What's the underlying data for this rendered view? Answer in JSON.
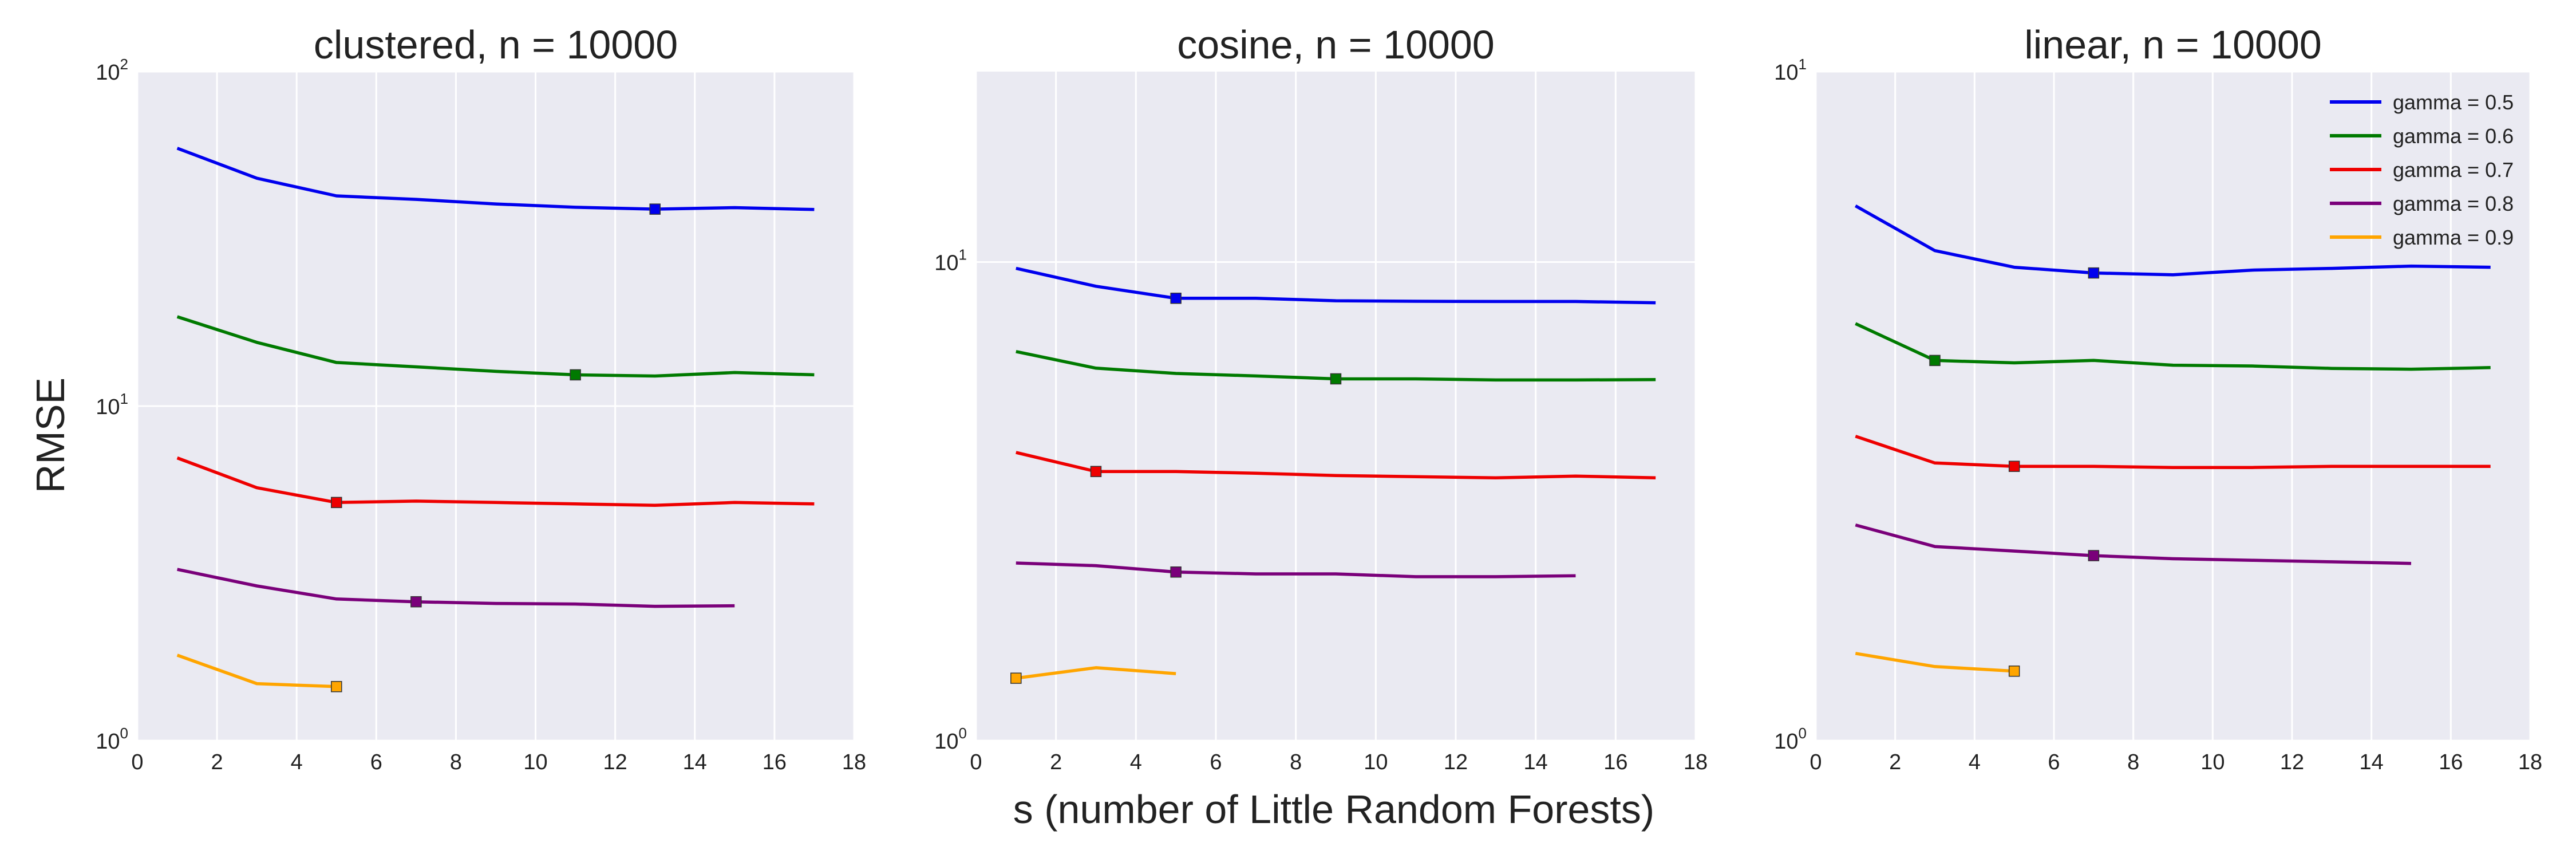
{
  "chart_data": [
    {
      "type": "line",
      "title": "clustered, n = 10000",
      "yscale": "log",
      "ylim": [
        1,
        100
      ],
      "xlim": [
        0,
        18
      ],
      "xticks": [
        0,
        2,
        4,
        6,
        8,
        10,
        12,
        14,
        16,
        18
      ],
      "yticks": [
        {
          "value": 1,
          "base": "10",
          "exp": "0"
        },
        {
          "value": 10,
          "base": "10",
          "exp": "1"
        },
        {
          "value": 100,
          "base": "10",
          "exp": "2"
        }
      ],
      "series": [
        {
          "name": "gamma = 0.5",
          "x": [
            1,
            3,
            5,
            7,
            9,
            11,
            13,
            15,
            17
          ],
          "values": [
            59,
            48,
            42.5,
            41.5,
            40.2,
            39.3,
            38.8,
            39.2,
            38.7
          ],
          "marker_x": 13,
          "marker_y": 38.8
        },
        {
          "name": "gamma = 0.6",
          "x": [
            1,
            3,
            5,
            7,
            9,
            11,
            13,
            15,
            17
          ],
          "values": [
            18.5,
            15.5,
            13.5,
            13.1,
            12.7,
            12.4,
            12.3,
            12.6,
            12.4
          ],
          "marker_x": 11,
          "marker_y": 12.4
        },
        {
          "name": "gamma = 0.7",
          "x": [
            1,
            3,
            5,
            7,
            9,
            11,
            13,
            15,
            17
          ],
          "values": [
            7.0,
            5.7,
            5.15,
            5.2,
            5.15,
            5.1,
            5.05,
            5.15,
            5.1
          ],
          "marker_x": 5,
          "marker_y": 5.15
        },
        {
          "name": "gamma = 0.8",
          "x": [
            1,
            3,
            5,
            7,
            9,
            11,
            13,
            15
          ],
          "values": [
            3.25,
            2.9,
            2.65,
            2.6,
            2.57,
            2.56,
            2.52,
            2.53
          ],
          "marker_x": 7,
          "marker_y": 2.6
        },
        {
          "name": "gamma = 0.9",
          "x": [
            1,
            3,
            5
          ],
          "values": [
            1.8,
            1.48,
            1.45
          ],
          "marker_x": 5,
          "marker_y": 1.45
        }
      ]
    },
    {
      "type": "line",
      "title": "cosine, n = 10000",
      "yscale": "log",
      "ylim": [
        1,
        25
      ],
      "xlim": [
        0,
        18
      ],
      "xticks": [
        0,
        2,
        4,
        6,
        8,
        10,
        12,
        14,
        16,
        18
      ],
      "yticks": [
        {
          "value": 1,
          "base": "10",
          "exp": "0"
        },
        {
          "value": 10,
          "base": "10",
          "exp": "1"
        }
      ],
      "series": [
        {
          "name": "gamma = 0.5",
          "x": [
            1,
            3,
            5,
            7,
            9,
            11,
            13,
            15,
            17
          ],
          "values": [
            9.7,
            8.9,
            8.4,
            8.4,
            8.3,
            8.28,
            8.27,
            8.27,
            8.22
          ],
          "marker_x": 5,
          "marker_y": 8.4
        },
        {
          "name": "gamma = 0.6",
          "x": [
            1,
            3,
            5,
            7,
            9,
            11,
            13,
            15,
            17
          ],
          "values": [
            6.5,
            6.0,
            5.85,
            5.78,
            5.7,
            5.7,
            5.67,
            5.67,
            5.68
          ],
          "marker_x": 9,
          "marker_y": 5.7
        },
        {
          "name": "gamma = 0.7",
          "x": [
            1,
            3,
            5,
            7,
            9,
            11,
            13,
            15,
            17
          ],
          "values": [
            4.0,
            3.65,
            3.65,
            3.62,
            3.58,
            3.56,
            3.54,
            3.57,
            3.54
          ],
          "marker_x": 3,
          "marker_y": 3.65
        },
        {
          "name": "gamma = 0.8",
          "x": [
            1,
            3,
            5,
            7,
            9,
            11,
            13,
            15
          ],
          "values": [
            2.35,
            2.32,
            2.25,
            2.23,
            2.23,
            2.2,
            2.2,
            2.21
          ],
          "marker_x": 5,
          "marker_y": 2.25
        },
        {
          "name": "gamma = 0.9",
          "x": [
            1,
            3,
            5
          ],
          "values": [
            1.35,
            1.42,
            1.38
          ],
          "marker_x": 1,
          "marker_y": 1.35
        }
      ]
    },
    {
      "type": "line",
      "title": "linear, n = 10000",
      "yscale": "log",
      "ylim": [
        1,
        10
      ],
      "xlim": [
        0,
        18
      ],
      "xticks": [
        0,
        2,
        4,
        6,
        8,
        10,
        12,
        14,
        16,
        18
      ],
      "yticks": [
        {
          "value": 1,
          "base": "10",
          "exp": "0"
        },
        {
          "value": 10,
          "base": "10",
          "exp": "1"
        }
      ],
      "legend": {
        "position": "top-right",
        "entries": [
          "gamma = 0.5",
          "gamma = 0.6",
          "gamma = 0.7",
          "gamma = 0.8",
          "gamma = 0.9"
        ]
      },
      "series": [
        {
          "name": "gamma = 0.5",
          "x": [
            1,
            3,
            5,
            7,
            9,
            11,
            13,
            15,
            17
          ],
          "values": [
            6.3,
            5.4,
            5.1,
            5.0,
            4.97,
            5.05,
            5.08,
            5.12,
            5.1
          ],
          "marker_x": 7,
          "marker_y": 5.0
        },
        {
          "name": "gamma = 0.6",
          "x": [
            1,
            3,
            5,
            7,
            9,
            11,
            13,
            15,
            17
          ],
          "values": [
            4.2,
            3.7,
            3.67,
            3.7,
            3.64,
            3.63,
            3.6,
            3.59,
            3.61
          ],
          "marker_x": 3,
          "marker_y": 3.7
        },
        {
          "name": "gamma = 0.7",
          "x": [
            1,
            3,
            5,
            7,
            9,
            11,
            13,
            15,
            17
          ],
          "values": [
            2.85,
            2.6,
            2.57,
            2.57,
            2.56,
            2.56,
            2.57,
            2.57,
            2.57
          ],
          "marker_x": 5,
          "marker_y": 2.57
        },
        {
          "name": "gamma = 0.8",
          "x": [
            1,
            3,
            5,
            7,
            9,
            11,
            13,
            15
          ],
          "values": [
            2.1,
            1.95,
            1.92,
            1.89,
            1.87,
            1.86,
            1.85,
            1.84
          ],
          "marker_x": 7,
          "marker_y": 1.89
        },
        {
          "name": "gamma = 0.9",
          "x": [
            1,
            3,
            5
          ],
          "values": [
            1.35,
            1.29,
            1.27
          ],
          "marker_x": 5,
          "marker_y": 1.27
        }
      ]
    }
  ],
  "figure": {
    "ylabel": "RMSE",
    "xlabel": "s (number of Little Random Forests)",
    "series_colors": [
      "#0000ee",
      "#007a00",
      "#ee0000",
      "#7a007a",
      "#ffa500"
    ],
    "plot_background": "#eaeaf2",
    "grid_color": "#ffffff"
  }
}
